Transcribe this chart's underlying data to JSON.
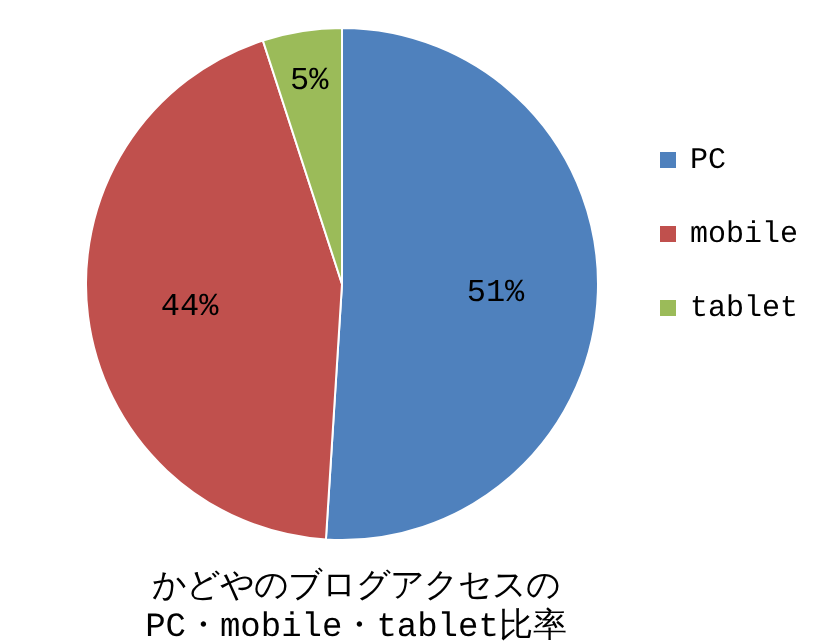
{
  "chart_data": {
    "type": "pie",
    "title": "かどやのブログアクセスの\nPC・mobile・tablet比率",
    "categories": [
      "PC",
      "mobile",
      "tablet"
    ],
    "values": [
      51,
      44,
      5
    ],
    "colors": [
      "#4f81bd",
      "#c0504d",
      "#9bbb59"
    ],
    "value_labels": [
      "51%",
      "44%",
      "5%"
    ],
    "legend": "right"
  }
}
